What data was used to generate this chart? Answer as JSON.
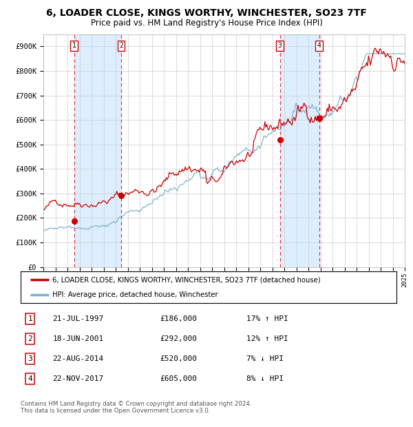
{
  "title": "6, LOADER CLOSE, KINGS WORTHY, WINCHESTER, SO23 7TF",
  "subtitle": "Price paid vs. HM Land Registry's House Price Index (HPI)",
  "title_fontsize": 10,
  "subtitle_fontsize": 8.5,
  "x_start_year": 1995,
  "x_end_year": 2025,
  "ylim": [
    0,
    950000
  ],
  "yticks": [
    0,
    100000,
    200000,
    300000,
    400000,
    500000,
    600000,
    700000,
    800000,
    900000
  ],
  "ytick_labels": [
    "£0",
    "£100K",
    "£200K",
    "£300K",
    "£400K",
    "£500K",
    "£600K",
    "£700K",
    "£800K",
    "£900K"
  ],
  "sales": [
    {
      "label": "1",
      "date_num": 1997.55,
      "price": 186000,
      "date_str": "21-JUL-1997"
    },
    {
      "label": "2",
      "date_num": 2001.46,
      "price": 292000,
      "date_str": "18-JUN-2001"
    },
    {
      "label": "3",
      "date_num": 2014.64,
      "price": 520000,
      "date_str": "22-AUG-2014"
    },
    {
      "label": "4",
      "date_num": 2017.9,
      "price": 605000,
      "date_str": "22-NOV-2017"
    }
  ],
  "red_line_color": "#cc0000",
  "blue_line_color": "#7ab0d4",
  "dashed_line_color": "#ee3333",
  "marker_color": "#cc0000",
  "shaded_color": "#ddeeff",
  "grid_color": "#cccccc",
  "legend_label_red": "6, LOADER CLOSE, KINGS WORTHY, WINCHESTER, SO23 7TF (detached house)",
  "legend_label_blue": "HPI: Average price, detached house, Winchester",
  "footer_text": "Contains HM Land Registry data © Crown copyright and database right 2024.\nThis data is licensed under the Open Government Licence v3.0.",
  "table_rows": [
    {
      "num": "1",
      "date": "21-JUL-1997",
      "price": "£186,000",
      "pct": "17% ↑ HPI"
    },
    {
      "num": "2",
      "date": "18-JUN-2001",
      "price": "£292,000",
      "pct": "12% ↑ HPI"
    },
    {
      "num": "3",
      "date": "22-AUG-2014",
      "price": "£520,000",
      "pct": "7% ↓ HPI"
    },
    {
      "num": "4",
      "date": "22-NOV-2017",
      "price": "£605,000",
      "pct": "8% ↓ HPI"
    }
  ]
}
